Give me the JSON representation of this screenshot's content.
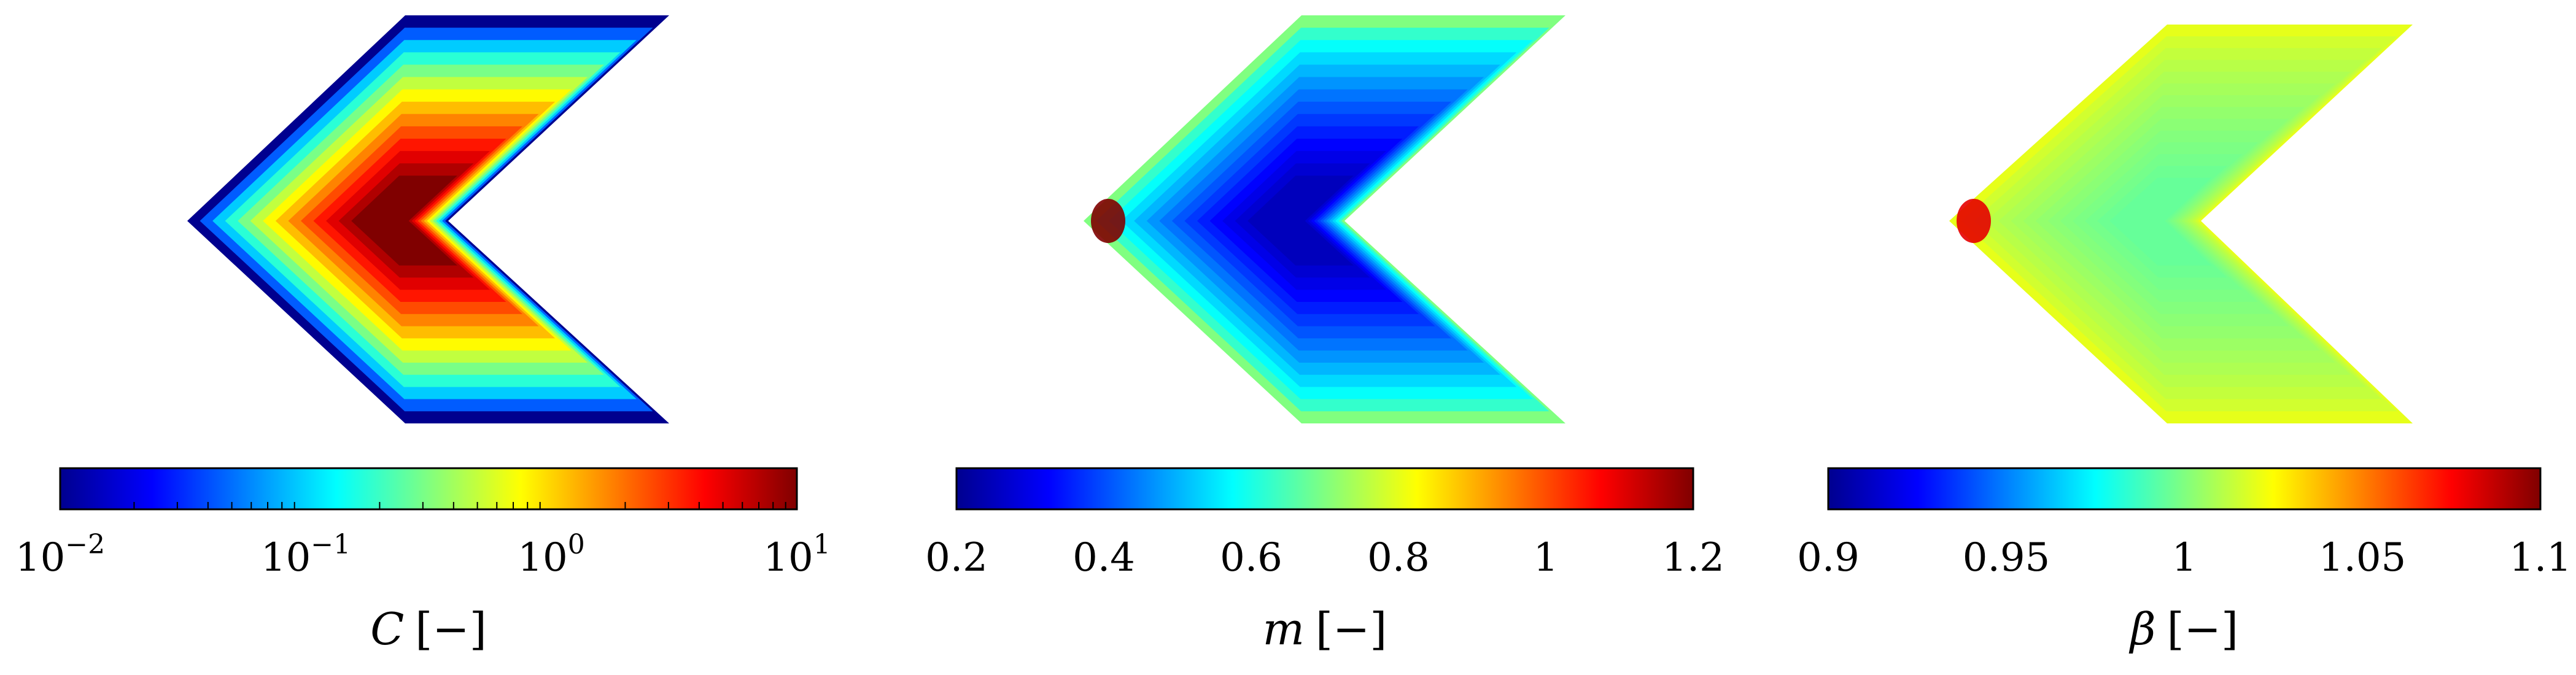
{
  "chart_data": [
    {
      "type": "heatmap",
      "variable": "C",
      "label_symbol": "C",
      "label_unit": "[−]",
      "scale": "log",
      "range": [
        0.01,
        10
      ],
      "ticks": [
        {
          "base": "10",
          "exp": "−2"
        },
        {
          "base": "10",
          "exp": "−1"
        },
        {
          "base": "10",
          "exp": "0"
        },
        {
          "base": "10",
          "exp": "1"
        }
      ],
      "colormap": "jet",
      "field": {
        "edge": 0.01,
        "core": 10,
        "peak": 10
      }
    },
    {
      "type": "heatmap",
      "variable": "m",
      "label_symbol": "m",
      "label_unit": "[−]",
      "scale": "linear",
      "range": [
        0.2,
        1.2
      ],
      "ticks": [
        "0.2",
        "0.4",
        "0.6",
        "0.8",
        "1",
        "1.2"
      ],
      "colormap": "jet",
      "field": {
        "edge": 0.7,
        "core": 0.25,
        "peak": 1.2
      }
    },
    {
      "type": "heatmap",
      "variable": "beta",
      "label_symbol": "β",
      "label_unit": "[−]",
      "scale": "linear",
      "range": [
        0.9,
        1.1
      ],
      "ticks": [
        "0.9",
        "0.95",
        "1",
        "1.05",
        "1.1"
      ],
      "colormap": "jet",
      "field": {
        "edge": 1.02,
        "core": 0.995,
        "peak": 1.08
      }
    }
  ]
}
